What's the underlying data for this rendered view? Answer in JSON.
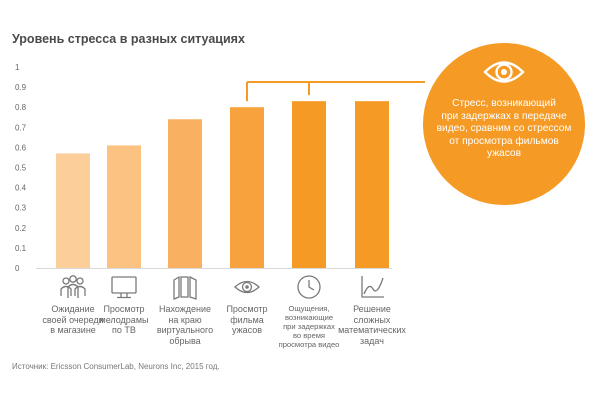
{
  "chart_data": {
    "type": "bar",
    "title": "Уровень стресса в разных ситуациях",
    "categories": [
      "Ожидание своей очереди в магазине",
      "Просмотр мелодрамы по ТВ",
      "Нахождение на краю виртуального обрыва",
      "Просмотр фильма ужасов",
      "Ощущения, возникающие при задержках во время просмотра видео",
      "Решение сложных математических задач"
    ],
    "values": [
      0.57,
      0.61,
      0.74,
      0.8,
      0.83,
      0.83
    ],
    "ylim": [
      0,
      1
    ],
    "yticks": [
      "0",
      "0.1",
      "0.2",
      "0.3",
      "0.4",
      "0.5",
      "0.6",
      "0.7",
      "0.8",
      "0.9",
      "1"
    ],
    "grid": false,
    "bar_colors": [
      "#fccf9a",
      "#fbc282",
      "#f9b060",
      "#f7a23c",
      "#f59a24",
      "#f59a24"
    ],
    "callout": {
      "text": "Стресс, возникающий при задержках в передаче видео, сравним со стрессом от просмотра фильмов ужасов",
      "color": "#f59a24",
      "icon": "eye-icon"
    },
    "source": "Источник: Ericsson ConsumerLab, Neurons Inc, 2015 год."
  },
  "category_icons": [
    "people-icon",
    "tv-icon",
    "cliff-panels-icon",
    "eye-icon",
    "clock-icon",
    "graph-icon"
  ],
  "category_lines": [
    [
      "Ожидание",
      "своей очереди",
      "в магазине"
    ],
    [
      "Просмотр",
      "мелодрамы",
      "по ТВ"
    ],
    [
      "Нахождение",
      "на краю",
      "виртуального",
      "обрыва"
    ],
    [
      "Просмотр",
      "фильма",
      "ужасов"
    ],
    [
      "Ощущения,",
      "возникающие",
      "при задержках",
      "во время",
      "просмотра видео"
    ],
    [
      "Решение",
      "сложных",
      "математических",
      "задач"
    ]
  ],
  "callout_lines": [
    "Стресс, возникающий",
    "при задержках  в передаче",
    "видео, сравним со стрессом",
    "от просмотра фильмов",
    "ужасов"
  ]
}
